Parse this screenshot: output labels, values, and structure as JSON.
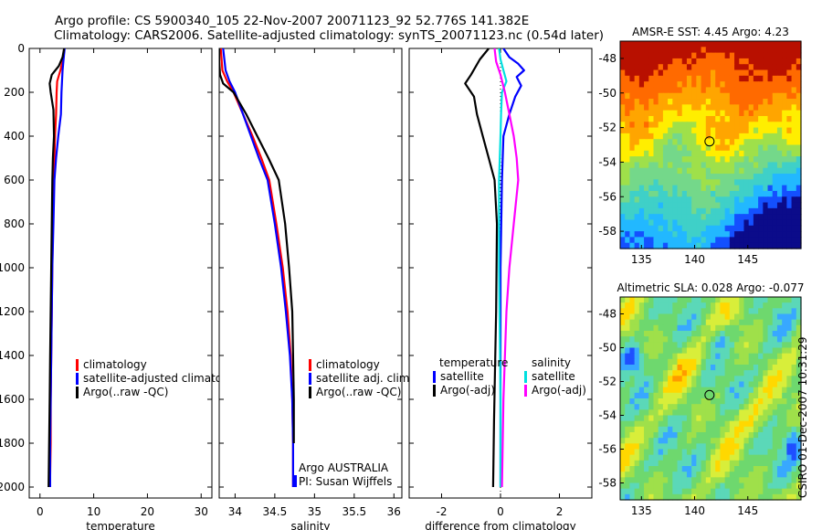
{
  "header": {
    "line1": "Argo profile: CS 5900340_105 22-Nov-2007 20071123_92 52.776S 141.382E",
    "line2": "Climatology: CARS2006. Satellite-adjusted climatology: synTS_20071123.nc (0.54d later)"
  },
  "stamp": "CSIRO 01-Dec-2007 10:31:29",
  "colors": {
    "climatology": "#ff0000",
    "satellite": "#0000ff",
    "argo": "#000000",
    "sat_sal": "#00e0e0",
    "argo_sal": "#ff00ff"
  },
  "chart_data": [
    {
      "type": "line",
      "id": "temp",
      "xlabel": "temperature",
      "ylabel": "",
      "xlim": [
        -2,
        32
      ],
      "ylim": [
        2050,
        0
      ],
      "xticks": [
        0,
        10,
        20,
        30
      ],
      "yticks": [
        0,
        200,
        400,
        600,
        800,
        1000,
        1200,
        1400,
        1600,
        1800,
        2000
      ],
      "legend": [
        "climatology",
        "satellite-adjusted climatology",
        "Argo(..raw -QC)"
      ],
      "series": [
        {
          "name": "climatology",
          "color": "#ff0000",
          "x": [
            4.5,
            4.3,
            3.8,
            3.2,
            3.1,
            3.0,
            2.8,
            2.7,
            2.5,
            2.4,
            2.3,
            2.2,
            2.1,
            2.0,
            2.0,
            1.9,
            1.9
          ],
          "y": [
            0,
            50,
            100,
            150,
            200,
            300,
            400,
            500,
            600,
            800,
            1000,
            1200,
            1400,
            1600,
            1800,
            1950,
            2000
          ]
        },
        {
          "name": "satellite-adjusted climatology",
          "color": "#0000ff",
          "x": [
            4.6,
            4.4,
            4.2,
            4.1,
            4.0,
            3.9,
            3.4,
            3.0,
            2.7,
            2.5,
            2.3,
            2.2,
            2.1,
            2.0,
            1.9,
            1.9
          ],
          "y": [
            0,
            50,
            100,
            150,
            200,
            300,
            400,
            500,
            600,
            800,
            1000,
            1200,
            1400,
            1600,
            1800,
            2000
          ]
        },
        {
          "name": "Argo(..raw -QC)",
          "color": "#000000",
          "x": [
            4.5,
            4.2,
            3.5,
            2.2,
            1.8,
            2.0,
            2.5,
            2.6,
            2.4,
            2.3,
            2.2,
            2.1,
            2.0,
            1.9,
            1.8,
            1.7,
            1.6
          ],
          "y": [
            0,
            40,
            80,
            120,
            160,
            200,
            280,
            400,
            500,
            600,
            800,
            1000,
            1200,
            1400,
            1600,
            1800,
            2000
          ]
        }
      ]
    },
    {
      "type": "line",
      "id": "sal",
      "xlabel": "salinity",
      "ylabel": "",
      "xlim": [
        33.8,
        36.1
      ],
      "ylim": [
        2050,
        0
      ],
      "xticks": [
        34,
        34.5,
        35,
        35.5,
        36
      ],
      "yticks": [
        0,
        200,
        400,
        600,
        800,
        1000,
        1200,
        1400,
        1600,
        1800,
        2000
      ],
      "legend": [
        "climatology",
        "satellite adj. clim.",
        "Argo(..raw -QC)"
      ],
      "annotation": [
        "Argo AUSTRALIA",
        "PI: Susan Wijffels"
      ],
      "series": [
        {
          "name": "climatology",
          "color": "#ff0000",
          "x": [
            33.82,
            33.84,
            33.9,
            33.98,
            34.1,
            34.22,
            34.33,
            34.43,
            34.52,
            34.6,
            34.66,
            34.7,
            34.72,
            34.73,
            34.73
          ],
          "y": [
            0,
            100,
            150,
            200,
            300,
            400,
            500,
            600,
            800,
            1000,
            1200,
            1400,
            1600,
            1800,
            2000
          ]
        },
        {
          "name": "satellite adj. clim.",
          "color": "#0000ff",
          "x": [
            33.85,
            33.88,
            33.93,
            34.0,
            34.1,
            34.2,
            34.3,
            34.41,
            34.5,
            34.58,
            34.64,
            34.69,
            34.72,
            34.73,
            34.73
          ],
          "y": [
            0,
            100,
            150,
            200,
            300,
            400,
            500,
            600,
            800,
            1000,
            1200,
            1400,
            1600,
            1800,
            2000
          ]
        },
        {
          "name": "Argo(..raw -QC)",
          "color": "#000000",
          "x": [
            33.8,
            33.8,
            33.81,
            33.85,
            33.98,
            34.14,
            34.28,
            34.42,
            34.55,
            34.63,
            34.68,
            34.72,
            34.73,
            34.74,
            34.74
          ],
          "y": [
            0,
            60,
            120,
            160,
            200,
            300,
            400,
            500,
            600,
            800,
            1000,
            1200,
            1400,
            1600,
            1800
          ]
        }
      ]
    },
    {
      "type": "line",
      "id": "diff",
      "xlabel": "difference from climatology",
      "ylabel": "",
      "xlim": [
        -3.1,
        3.1
      ],
      "ylim": [
        2050,
        0
      ],
      "xticks": [
        -2,
        0,
        2
      ],
      "yticks": [
        0,
        200,
        400,
        600,
        800,
        1000,
        1200,
        1400,
        1600,
        1800,
        2000
      ],
      "legend_temperature": {
        "title": "temperature",
        "items": [
          "satellite",
          "Argo(-adj)"
        ]
      },
      "legend_salinity": {
        "title": "salinity",
        "items": [
          "satellite",
          "Argo(-adj)"
        ]
      },
      "series": [
        {
          "name": "temperature satellite",
          "color": "#0000ff",
          "x": [
            0.1,
            0.3,
            0.6,
            0.8,
            0.55,
            0.7,
            0.5,
            0.3,
            0.1,
            0.05,
            0.0,
            0.0,
            0.0
          ],
          "y": [
            0,
            40,
            70,
            100,
            130,
            170,
            220,
            300,
            400,
            600,
            1000,
            1600,
            2000
          ]
        },
        {
          "name": "temperature Argo(-adj)",
          "color": "#000000",
          "x": [
            -0.4,
            -0.7,
            -1.0,
            -1.2,
            -0.9,
            -0.8,
            -0.6,
            -0.4,
            -0.2,
            -0.12,
            -0.15,
            -0.22,
            -0.25
          ],
          "y": [
            0,
            50,
            120,
            160,
            220,
            300,
            400,
            500,
            600,
            800,
            1200,
            1700,
            2000
          ]
        },
        {
          "name": "salinity satellite",
          "color": "#00e0e0",
          "x": [
            -0.05,
            0.0,
            0.1,
            0.2,
            0.05,
            0.02,
            0.0,
            -0.05,
            -0.05,
            0.0,
            0.0
          ],
          "y": [
            0,
            50,
            100,
            150,
            200,
            300,
            400,
            600,
            1000,
            1600,
            2000
          ]
        },
        {
          "name": "salinity Argo(-adj)",
          "color": "#ff00ff",
          "x": [
            -0.2,
            -0.15,
            0.0,
            0.15,
            0.3,
            0.45,
            0.55,
            0.6,
            0.45,
            0.3,
            0.2,
            0.1,
            0.05
          ],
          "y": [
            0,
            60,
            120,
            200,
            300,
            400,
            500,
            600,
            800,
            1000,
            1200,
            1600,
            2000
          ]
        }
      ]
    },
    {
      "type": "heatmap",
      "id": "sst",
      "title": "AMSR-E SST: 4.45 Argo: 4.23",
      "xlim": [
        133,
        150
      ],
      "ylim": [
        -59,
        -47
      ],
      "xticks": [
        135,
        140,
        145
      ],
      "yticks": [
        -48,
        -50,
        -52,
        -54,
        -56,
        -58
      ],
      "marker": {
        "lon": 141.4,
        "lat": -52.8
      },
      "palette": [
        "#0b0b8a",
        "#1450ff",
        "#22b8ff",
        "#3fd0c8",
        "#74d88a",
        "#9fe04a",
        "#ffee00",
        "#ffa500",
        "#ff6a00",
        "#b81000"
      ]
    },
    {
      "type": "heatmap",
      "id": "sla",
      "title": "Altimetric SLA: 0.028 Argo: -0.077",
      "xlim": [
        133,
        150
      ],
      "ylim": [
        -59,
        -47
      ],
      "xticks": [
        135,
        140,
        145
      ],
      "yticks": [
        -48,
        -50,
        -52,
        -54,
        -56,
        -58
      ],
      "marker": {
        "lon": 141.4,
        "lat": -52.8
      },
      "palette": [
        "#1f4fff",
        "#38a8ff",
        "#5bd8b8",
        "#6ed86e",
        "#9fe04a",
        "#d8ee3a",
        "#ffd800",
        "#ff9a00",
        "#ff4800"
      ]
    }
  ]
}
